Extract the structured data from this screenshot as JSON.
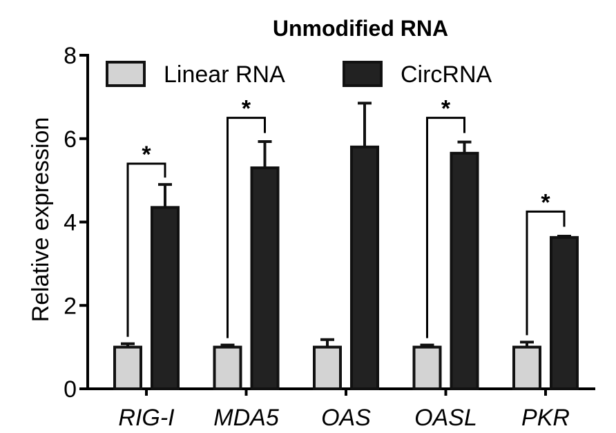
{
  "chart_data": {
    "type": "bar",
    "title": "Unmodified RNA",
    "xlabel": "",
    "ylabel": "Relative expression",
    "ylim": [
      0,
      8
    ],
    "yticks": [
      "0",
      "2",
      "4",
      "6",
      "8"
    ],
    "categories": [
      "RIG-I",
      "MDA5",
      "OAS",
      "OASL",
      "PKR"
    ],
    "series": [
      {
        "name": "Linear RNA",
        "color": "#d3d3d3",
        "edge_color": "#111111",
        "values": [
          1.0,
          1.0,
          1.0,
          1.0,
          1.0
        ],
        "errors": [
          0.08,
          0.05,
          0.18,
          0.05,
          0.12
        ]
      },
      {
        "name": "CircRNA",
        "color": "#222222",
        "edge_color": "#111111",
        "values": [
          4.35,
          5.3,
          5.8,
          5.65,
          3.63
        ],
        "errors": [
          0.55,
          0.63,
          1.05,
          0.27,
          0.03
        ]
      }
    ],
    "significance": [
      {
        "category": "RIG-I",
        "label": "*",
        "bracket_y": 5.4
      },
      {
        "category": "MDA5",
        "label": "*",
        "bracket_y": 6.5
      },
      {
        "category": "OASL",
        "label": "*",
        "bracket_y": 6.5
      },
      {
        "category": "PKR",
        "label": "*",
        "bracket_y": 4.25
      }
    ],
    "legend": "top",
    "grid": false
  }
}
